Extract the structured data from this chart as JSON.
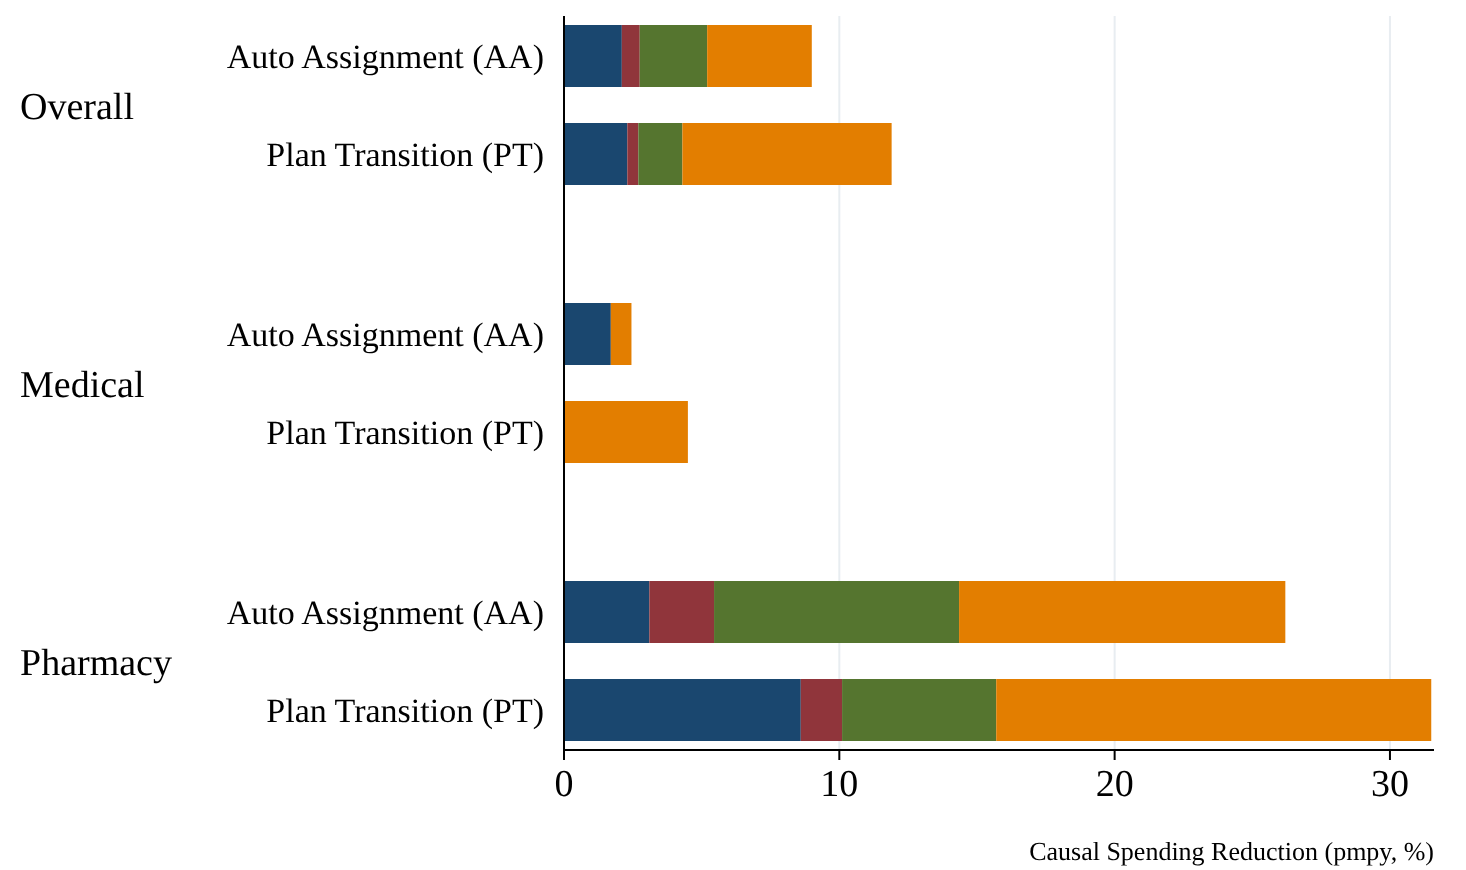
{
  "chart_data": {
    "type": "bar",
    "orientation": "horizontal",
    "stacked": true,
    "categories": [
      "Auto Assignment (AA)",
      "Plan Transition (PT)",
      "Auto Assignment (AA)",
      "Plan Transition (PT)",
      "Auto Assignment (AA)",
      "Plan Transition (PT)"
    ],
    "annotations": [
      "Overall",
      "Medical",
      "Pharmacy"
    ],
    "series": [
      {
        "color": "#1a476f",
        "values": [
          2.1,
          2.3,
          1.7,
          0,
          3.1,
          8.6
        ]
      },
      {
        "color": "#90353b",
        "values": [
          0.65,
          0.4,
          0,
          0,
          2.35,
          1.5
        ]
      },
      {
        "color": "#55752f",
        "values": [
          2.45,
          1.6,
          0,
          0,
          8.9,
          5.6
        ]
      },
      {
        "color": "#e37e00",
        "values": [
          3.8,
          7.6,
          0.75,
          4.5,
          11.85,
          15.8
        ]
      }
    ],
    "xlim": [
      0,
      31.6
    ],
    "xticks": [
      0,
      10,
      20,
      30
    ],
    "grid": "x",
    "xlabel": "Causal Spending Reduction (pmpy, %)"
  }
}
